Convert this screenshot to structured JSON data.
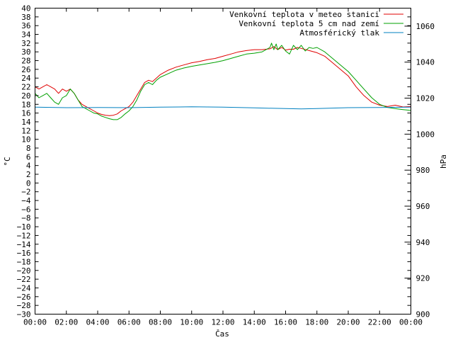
{
  "chart_data": {
    "type": "line",
    "xlabel": "Čas",
    "ylabel_left": "°C",
    "ylabel_right": "hPa",
    "ylim_left": [
      -30,
      40
    ],
    "ylim_right": [
      900,
      1070
    ],
    "xlim": [
      0,
      24
    ],
    "x_ticks": [
      "00:00",
      "02:00",
      "04:00",
      "06:00",
      "08:00",
      "10:00",
      "12:00",
      "14:00",
      "16:00",
      "18:00",
      "20:00",
      "22:00",
      "00:00"
    ],
    "y_ticks_left": [
      40,
      38,
      36,
      34,
      32,
      30,
      28,
      26,
      24,
      22,
      20,
      18,
      16,
      14,
      12,
      10,
      8,
      6,
      4,
      2,
      0,
      -2,
      -4,
      -6,
      -8,
      -10,
      -12,
      -14,
      -16,
      -18,
      -20,
      -22,
      -24,
      -26,
      -28,
      -30
    ],
    "y_ticks_right": [
      1060,
      1040,
      1020,
      1000,
      980,
      960,
      940,
      920,
      900
    ],
    "grid": false,
    "legend_position": "top-right",
    "series": [
      {
        "name": "Venkovní teplota v meteo stanici",
        "color": "#e00000",
        "axis": "left",
        "x": [
          0,
          0.25,
          0.5,
          0.75,
          1,
          1.25,
          1.5,
          1.75,
          2,
          2.25,
          2.5,
          2.75,
          3,
          3.25,
          3.5,
          3.75,
          4,
          4.25,
          4.5,
          4.75,
          5,
          5.25,
          5.5,
          5.75,
          6,
          6.25,
          6.5,
          6.75,
          7,
          7.25,
          7.5,
          7.75,
          8,
          8.5,
          9,
          9.5,
          10,
          10.5,
          11,
          11.5,
          12,
          12.5,
          13,
          13.5,
          14,
          14.5,
          15,
          15.25,
          15.5,
          15.75,
          16,
          16.25,
          16.5,
          16.75,
          17,
          17.5,
          18,
          18.5,
          19,
          19.5,
          20,
          20.5,
          21,
          21.5,
          22,
          22.5,
          23,
          23.5,
          24
        ],
        "values": [
          22,
          21.5,
          22,
          22.5,
          22,
          21.5,
          20.5,
          21.5,
          21,
          21.5,
          20.5,
          19,
          18,
          17.5,
          17,
          16.5,
          16,
          15.7,
          15.5,
          15.4,
          15.5,
          15.8,
          16.5,
          17,
          17.5,
          18.5,
          20,
          21.5,
          23,
          23.5,
          23.2,
          24,
          24.8,
          25.8,
          26.5,
          27,
          27.5,
          27.8,
          28.2,
          28.5,
          29,
          29.5,
          30,
          30.3,
          30.5,
          30.5,
          30.7,
          31.2,
          30.5,
          31,
          30.4,
          30.6,
          30.6,
          31,
          30.8,
          30.3,
          29.8,
          29,
          27.5,
          26,
          24.5,
          22,
          20,
          18.5,
          17.8,
          17.5,
          17.8,
          17.4,
          17.5
        ]
      },
      {
        "name": "Venkovní teplota 5 cm nad zemí",
        "color": "#00a000",
        "axis": "left",
        "x": [
          0,
          0.25,
          0.5,
          0.75,
          1,
          1.25,
          1.5,
          1.75,
          2,
          2.25,
          2.5,
          2.75,
          3,
          3.25,
          3.5,
          3.75,
          4,
          4.25,
          4.5,
          4.75,
          5,
          5.25,
          5.5,
          5.75,
          6,
          6.25,
          6.5,
          6.75,
          7,
          7.25,
          7.5,
          7.75,
          8,
          8.5,
          9,
          9.5,
          10,
          10.5,
          11,
          11.5,
          12,
          12.5,
          13,
          13.5,
          14,
          14.5,
          15,
          15.1,
          15.25,
          15.4,
          15.5,
          15.75,
          16,
          16.25,
          16.5,
          16.75,
          17,
          17.25,
          17.5,
          17.75,
          18,
          18.5,
          19,
          19.5,
          20,
          20.5,
          21,
          21.5,
          22,
          22.5,
          23,
          23.5,
          24
        ],
        "values": [
          20.5,
          19.5,
          20,
          20.5,
          19.5,
          18.5,
          18,
          19.5,
          20,
          21.5,
          20.5,
          19,
          17.5,
          17,
          16.5,
          16,
          15.8,
          15.3,
          15,
          14.7,
          14.5,
          14.5,
          15,
          15.8,
          16.5,
          17.5,
          19,
          21,
          22.5,
          23,
          22.5,
          23.5,
          24.2,
          25,
          25.8,
          26.3,
          26.7,
          27,
          27.3,
          27.6,
          28,
          28.5,
          29,
          29.5,
          29.7,
          30,
          31,
          32,
          30.5,
          31.8,
          30.5,
          31.5,
          30.2,
          29.5,
          31.5,
          30.5,
          31.5,
          30.2,
          31,
          30.8,
          31,
          30,
          28.5,
          27,
          25.5,
          23.5,
          21.5,
          19.5,
          18,
          17.3,
          17,
          16.8,
          16.6
        ]
      },
      {
        "name": "Atmosférický tlak",
        "color": "#0080c0",
        "axis": "right",
        "x": [
          0,
          2,
          4,
          6,
          8,
          10,
          12,
          14,
          16,
          17,
          18,
          20,
          22,
          24
        ],
        "values": [
          1015,
          1014.7,
          1014.8,
          1014.7,
          1015,
          1015.2,
          1015,
          1014.6,
          1014.2,
          1014,
          1014.2,
          1014.7,
          1014.8,
          1015
        ]
      }
    ]
  }
}
